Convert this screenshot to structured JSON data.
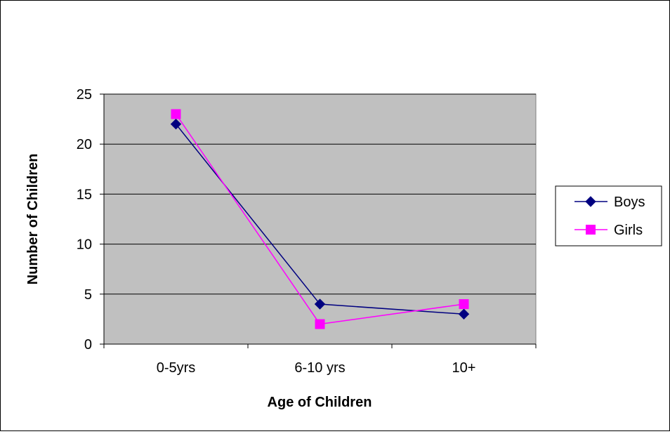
{
  "chart_data": {
    "type": "line",
    "title": "",
    "xlabel": "Age of Children",
    "ylabel": "Number of Children",
    "categories": [
      "0-5yrs",
      "6-10 yrs",
      "10+"
    ],
    "ylim": [
      0,
      25
    ],
    "yticks": [
      0,
      5,
      10,
      15,
      20,
      25
    ],
    "grid": true,
    "legend_position": "right",
    "plot_background": "#C0C0C0",
    "series": [
      {
        "name": "Boys",
        "values": [
          22,
          4,
          3
        ],
        "color": "#000080",
        "marker": "diamond"
      },
      {
        "name": "Girls",
        "values": [
          23,
          2,
          4
        ],
        "color": "#FF00FF",
        "marker": "square"
      }
    ]
  }
}
